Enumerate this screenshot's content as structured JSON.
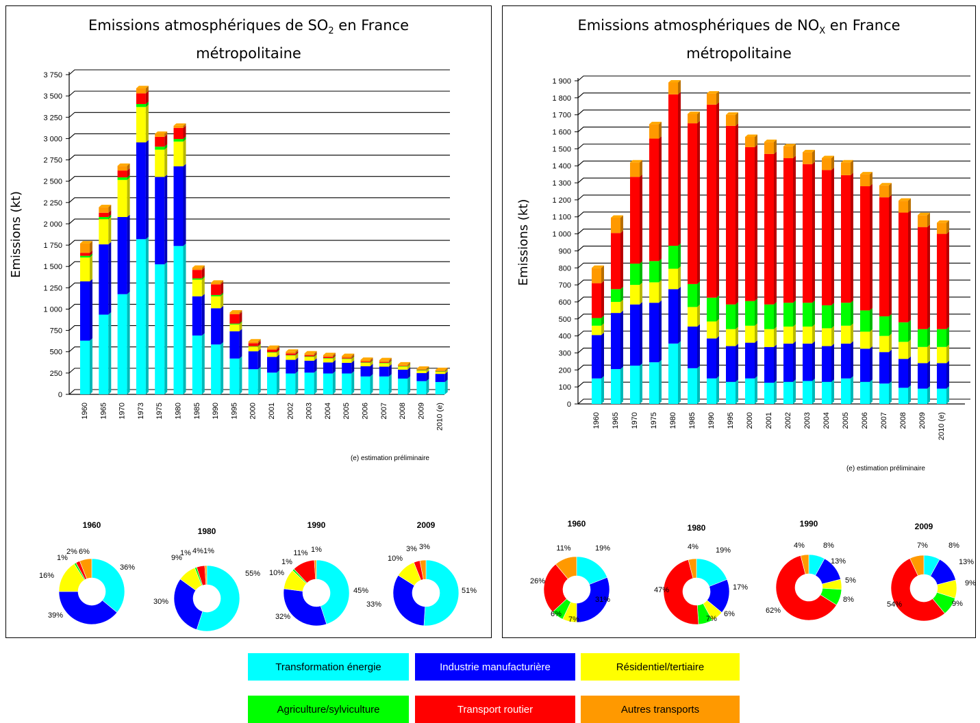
{
  "legend": [
    {
      "label": "Transformation énergie",
      "color": "#00FFFF",
      "text_color": "#000000"
    },
    {
      "label": "Industrie manufacturière",
      "color": "#0000FF",
      "text_color": "#FFFFFF"
    },
    {
      "label": "Résidentiel/tertiaire",
      "color": "#FFFF00",
      "text_color": "#000000"
    },
    {
      "label": "Agriculture/sylviculture",
      "color": "#00FF00",
      "text_color": "#000000"
    },
    {
      "label": "Transport routier",
      "color": "#FF0000",
      "text_color": "#FFFFFF"
    },
    {
      "label": "Autres transports",
      "color": "#FF9900",
      "text_color": "#000000"
    }
  ],
  "chart_data": [
    {
      "type": "bar",
      "stacked": true,
      "title": "Emissions atmosphériques de SO",
      "title_sub": "2",
      "title_suffix": " en France",
      "title_line2": "métropolitaine",
      "ylabel": "Emissions (kt)",
      "ylim": [
        0,
        3750
      ],
      "yticks": [
        0,
        250,
        500,
        750,
        1000,
        1250,
        1500,
        1750,
        2000,
        2250,
        2500,
        2750,
        3000,
        3250,
        3500,
        3750
      ],
      "ytick_labels": [
        "0",
        "250",
        "500",
        "750",
        "1 000",
        "1 250",
        "1 500",
        "1 750",
        "2 000",
        "2 250",
        "2 500",
        "2 750",
        "3 000",
        "3 250",
        "3 500",
        "3 750"
      ],
      "categories": [
        "1960",
        "1965",
        "1970",
        "1973",
        "1975",
        "1980",
        "1985",
        "1990",
        "1995",
        "2000",
        "2001",
        "2002",
        "2003",
        "2004",
        "2005",
        "2006",
        "2007",
        "2008",
        "2009",
        "2010 (e)"
      ],
      "series": [
        {
          "name": "Transformation énergie",
          "values": [
            630,
            935,
            1175,
            1820,
            1525,
            1740,
            690,
            585,
            420,
            295,
            255,
            245,
            255,
            245,
            245,
            210,
            210,
            185,
            155,
            145
          ]
        },
        {
          "name": "Industrie manufacturière",
          "values": [
            695,
            825,
            905,
            1135,
            1025,
            935,
            460,
            425,
            320,
            210,
            185,
            160,
            140,
            130,
            125,
            120,
            115,
            105,
            95,
            95
          ]
        },
        {
          "name": "Résidentiel/tertiaire",
          "values": [
            280,
            295,
            435,
            415,
            320,
            290,
            195,
            140,
            80,
            55,
            50,
            50,
            45,
            45,
            45,
            40,
            40,
            35,
            30,
            25
          ]
        },
        {
          "name": "Agriculture/sylviculture",
          "values": [
            20,
            25,
            30,
            35,
            35,
            30,
            15,
            15,
            10,
            5,
            5,
            5,
            5,
            5,
            5,
            5,
            5,
            5,
            5,
            5
          ]
        },
        {
          "name": "Transport routier",
          "values": [
            35,
            50,
            80,
            125,
            115,
            130,
            100,
            125,
            110,
            35,
            30,
            20,
            15,
            15,
            10,
            10,
            10,
            5,
            5,
            5
          ]
        },
        {
          "name": "Autres transports",
          "values": [
            110,
            65,
            55,
            60,
            35,
            25,
            25,
            20,
            20,
            20,
            20,
            20,
            20,
            20,
            20,
            20,
            20,
            15,
            10,
            10
          ]
        }
      ],
      "footnote": "(e) estimation préliminaire",
      "donuts": [
        {
          "year": "1960",
          "values": [
            36,
            39,
            16,
            1,
            2,
            6
          ],
          "labels": [
            "36%",
            "39%",
            "16%",
            "1%",
            "2%",
            "6%"
          ]
        },
        {
          "year": "1980",
          "values": [
            55,
            30,
            9,
            1,
            4,
            1
          ],
          "labels": [
            "55%",
            "30%",
            "9%",
            "1%",
            "4%",
            "1%"
          ]
        },
        {
          "year": "1990",
          "values": [
            45,
            32,
            10,
            1,
            11,
            1
          ],
          "labels": [
            "45%",
            "32%",
            "10%",
            "1%",
            "11%",
            "1%"
          ]
        },
        {
          "year": "2009",
          "values": [
            51,
            33,
            10,
            0,
            3,
            3
          ],
          "labels": [
            "51%",
            "33%",
            "10%",
            "",
            "3%",
            "3%"
          ]
        }
      ]
    },
    {
      "type": "bar",
      "stacked": true,
      "title": "Emissions atmosphériques de NO",
      "title_sub": "X",
      "title_suffix": " en France",
      "title_line2": "métropolitaine",
      "ylabel": "Emissions (kt)",
      "ylim": [
        0,
        1900
      ],
      "yticks": [
        0,
        100,
        200,
        300,
        400,
        500,
        600,
        700,
        800,
        900,
        1000,
        1100,
        1200,
        1300,
        1400,
        1500,
        1600,
        1700,
        1800,
        1900
      ],
      "ytick_labels": [
        "0",
        "100",
        "200",
        "300",
        "400",
        "500",
        "600",
        "700",
        "800",
        "900",
        "1 000",
        "1 100",
        "1 200",
        "1 300",
        "1 400",
        "1 500",
        "1 600",
        "1 700",
        "1 800",
        "1 900"
      ],
      "categories": [
        "1960",
        "1965",
        "1970",
        "1975",
        "1980",
        "1985",
        "1990",
        "1995",
        "2000",
        "2001",
        "2002",
        "2003",
        "2004",
        "2005",
        "2006",
        "2007",
        "2008",
        "2009",
        "2010 (e)"
      ],
      "series": [
        {
          "name": "Transformation énergie",
          "values": [
            150,
            205,
            225,
            245,
            355,
            210,
            150,
            130,
            150,
            125,
            130,
            135,
            130,
            150,
            130,
            120,
            95,
            90,
            90
          ]
        },
        {
          "name": "Industrie manufacturière",
          "values": [
            255,
            330,
            360,
            350,
            320,
            245,
            235,
            210,
            210,
            210,
            225,
            220,
            210,
            205,
            195,
            185,
            170,
            150,
            150
          ]
        },
        {
          "name": "Résidentiel/tertiaire",
          "values": [
            55,
            65,
            115,
            120,
            120,
            115,
            100,
            100,
            100,
            105,
            100,
            100,
            105,
            105,
            100,
            95,
            100,
            95,
            95
          ]
        },
        {
          "name": "Agriculture/sylviculture",
          "values": [
            45,
            75,
            125,
            125,
            135,
            135,
            140,
            145,
            145,
            145,
            140,
            140,
            135,
            135,
            125,
            115,
            115,
            105,
            105
          ]
        },
        {
          "name": "Transport routier",
          "values": [
            205,
            330,
            510,
            720,
            890,
            945,
            1135,
            1050,
            905,
            885,
            850,
            815,
            795,
            750,
            730,
            700,
            645,
            600,
            560
          ]
        },
        {
          "name": "Autres transports",
          "values": [
            90,
            90,
            85,
            85,
            70,
            55,
            65,
            65,
            60,
            70,
            70,
            70,
            70,
            75,
            70,
            70,
            70,
            70,
            65
          ]
        }
      ],
      "footnote": "(e) estimation préliminaire",
      "donuts": [
        {
          "year": "1960",
          "values": [
            19,
            31,
            7,
            6,
            26,
            11
          ],
          "labels": [
            "19%",
            "31%",
            "7%",
            "6%",
            "26%",
            "11%"
          ]
        },
        {
          "year": "1980",
          "values": [
            19,
            17,
            6,
            7,
            47,
            4
          ],
          "labels": [
            "19%",
            "17%",
            "6%",
            "7%",
            "47%",
            "4%"
          ]
        },
        {
          "year": "1990",
          "values": [
            8,
            13,
            5,
            8,
            62,
            4
          ],
          "labels": [
            "8%",
            "13%",
            "5%",
            "8%",
            "62%",
            "4%"
          ]
        },
        {
          "year": "2009",
          "values": [
            8,
            13,
            9,
            9,
            54,
            7
          ],
          "labels": [
            "8%",
            "13%",
            "9%",
            "9%",
            "54%",
            "7%"
          ]
        }
      ]
    }
  ]
}
